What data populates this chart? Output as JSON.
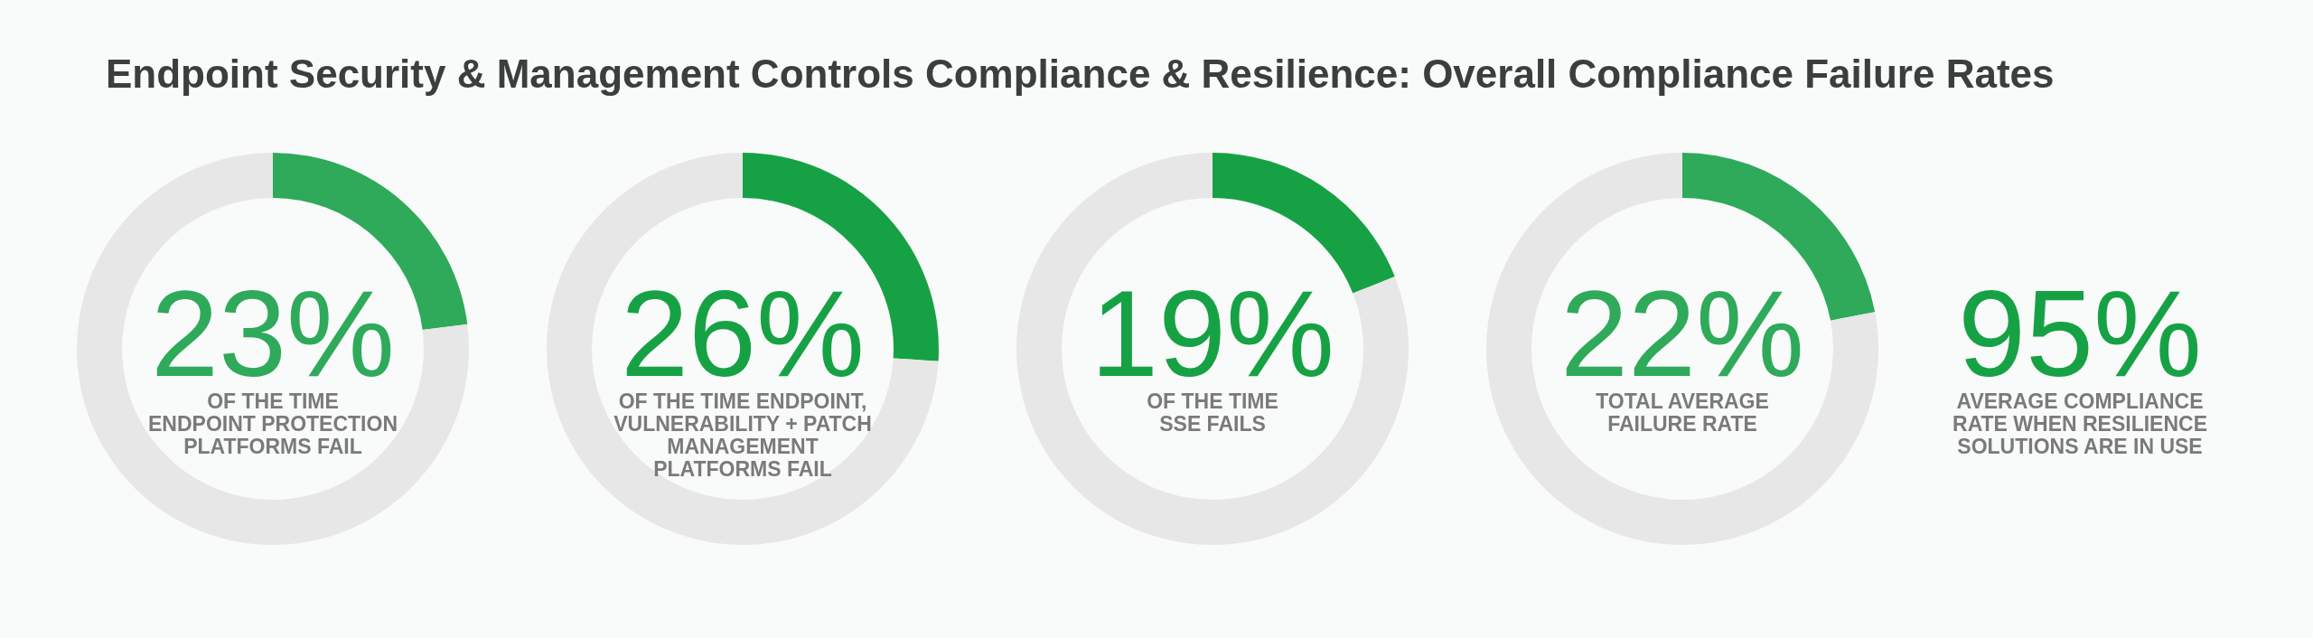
{
  "chart_data": [
    {
      "type": "donut",
      "title": "Endpoint Security & Management Controls Compliance & Resilience: Overall Compliance Failure Rates",
      "categories": [
        null,
        null
      ],
      "values": [
        23,
        77
      ],
      "colors": [
        "#2eaa5a",
        "#e6e7e6"
      ],
      "value_labels": [
        "23%",
        null
      ],
      "annotations": [
        "OF THE TIME\nENDPOINT PROTECTION\nPLATFORMS FAIL"
      ]
    },
    {
      "type": "donut",
      "categories": [
        null,
        null
      ],
      "values": [
        26,
        74
      ],
      "colors": [
        "#16a244",
        "#e6e7e6"
      ],
      "value_labels": [
        "26%",
        null
      ],
      "annotations": [
        "OF THE TIME ENDPOINT,\nVULNERABILITY + PATCH\nMANAGEMENT\nPLATFORMS FAIL"
      ]
    },
    {
      "type": "donut",
      "categories": [
        null,
        null
      ],
      "values": [
        19,
        81
      ],
      "colors": [
        "#16a244",
        "#e6e7e6"
      ],
      "value_labels": [
        "19%",
        null
      ],
      "annotations": [
        "OF THE TIME\nSSE FAILS"
      ]
    },
    {
      "type": "donut",
      "categories": [
        null,
        null
      ],
      "values": [
        22,
        78
      ],
      "colors": [
        "#2eaa5a",
        "#e6e7e6"
      ],
      "value_labels": [
        "22%",
        null
      ],
      "annotations": [
        "TOTAL AVERAGE\nFAILURE RATE"
      ]
    },
    {
      "type": "other",
      "value_labels": [
        "95%"
      ],
      "color": "#16a244",
      "annotations": [
        "AVERAGE COMPLIANCE\nRATE WHEN RESILIENCE\nSOLUTIONS ARE IN USE"
      ]
    }
  ]
}
